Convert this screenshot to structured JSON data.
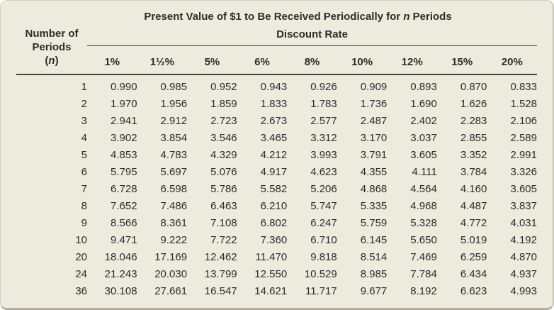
{
  "table": {
    "title_prefix": "Present Value of $1 to Be Received Periodically for ",
    "title_n": "n",
    "title_suffix": " Periods",
    "row_axis": {
      "line1": "Number of",
      "line2": "Periods",
      "n_open": "(",
      "n": "n",
      "n_close": ")"
    },
    "col_axis_label": "Discount Rate",
    "rate_headers": [
      "1%",
      "1½%",
      "5%",
      "6%",
      "8%",
      "10%",
      "12%",
      "15%",
      "20%"
    ],
    "rows": [
      {
        "n": "1",
        "values": [
          "0.990",
          "0.985",
          "0.952",
          "0.943",
          "0.926",
          "0.909",
          "0.893",
          "0.870",
          "0.833"
        ]
      },
      {
        "n": "2",
        "values": [
          "1.970",
          "1.956",
          "1.859",
          "1.833",
          "1.783",
          "1.736",
          "1.690",
          "1.626",
          "1.528"
        ]
      },
      {
        "n": "3",
        "values": [
          "2.941",
          "2.912",
          "2.723",
          "2.673",
          "2.577",
          "2.487",
          "2.402",
          "2.283",
          "2.106"
        ]
      },
      {
        "n": "4",
        "values": [
          "3.902",
          "3.854",
          "3.546",
          "3.465",
          "3.312",
          "3.170",
          "3.037",
          "2.855",
          "2.589"
        ]
      },
      {
        "n": "5",
        "values": [
          "4.853",
          "4.783",
          "4.329",
          "4.212",
          "3.993",
          "3.791",
          "3.605",
          "3.352",
          "2.991"
        ]
      },
      {
        "n": "6",
        "values": [
          "5.795",
          "5.697",
          "5.076",
          "4.917",
          "4.623",
          "4.355",
          "4.111",
          "3.784",
          "3.326"
        ]
      },
      {
        "n": "7",
        "values": [
          "6.728",
          "6.598",
          "5.786",
          "5.582",
          "5.206",
          "4.868",
          "4.564",
          "4.160",
          "3.605"
        ]
      },
      {
        "n": "8",
        "values": [
          "7.652",
          "7.486",
          "6.463",
          "6.210",
          "5.747",
          "5.335",
          "4.968",
          "4.487",
          "3.837"
        ]
      },
      {
        "n": "9",
        "values": [
          "8.566",
          "8.361",
          "7.108",
          "6.802",
          "6.247",
          "5.759",
          "5.328",
          "4.772",
          "4.031"
        ]
      },
      {
        "n": "10",
        "values": [
          "9.471",
          "9.222",
          "7.722",
          "7.360",
          "6.710",
          "6.145",
          "5.650",
          "5.019",
          "4.192"
        ]
      },
      {
        "n": "20",
        "values": [
          "18.046",
          "17.169",
          "12.462",
          "11.470",
          "9.818",
          "8.514",
          "7.469",
          "6.259",
          "4.870"
        ]
      },
      {
        "n": "24",
        "values": [
          "21.243",
          "20.030",
          "13.799",
          "12.550",
          "10.529",
          "8.985",
          "7.784",
          "6.434",
          "4.937"
        ]
      },
      {
        "n": "36",
        "values": [
          "30.108",
          "27.661",
          "16.547",
          "14.621",
          "11.717",
          "9.677",
          "8.192",
          "6.623",
          "4.993"
        ]
      }
    ]
  },
  "colors": {
    "card_background": "#EDEADE",
    "card_border": "#D5D1C4",
    "card_shadow": "#B3AFA2",
    "text": "#2E2D2A",
    "rule": "#44433E"
  }
}
